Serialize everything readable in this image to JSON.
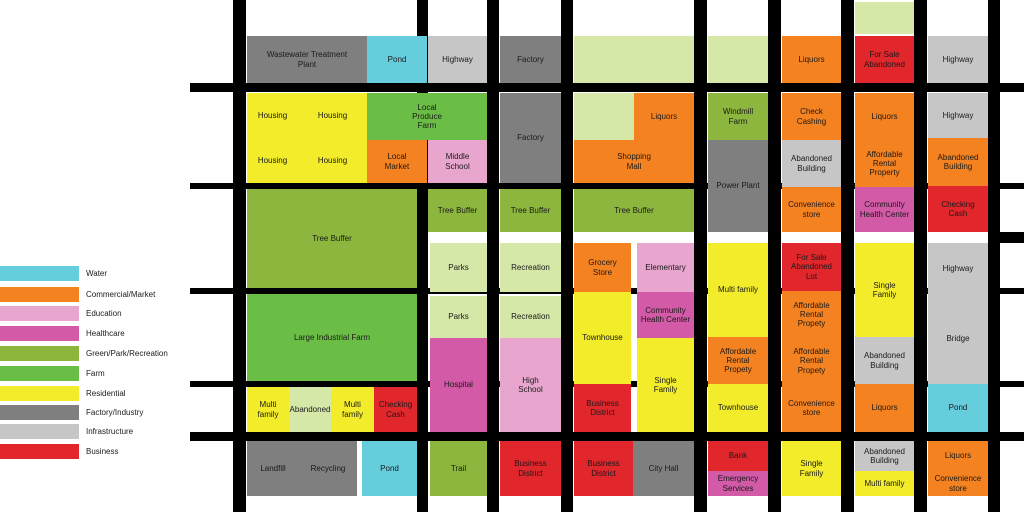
{
  "colors": {
    "water": "#66CDDD",
    "commercial": "#F58220",
    "education": "#E8A6CF",
    "healthcare": "#D25AA6",
    "green": "#8DB63E",
    "farm": "#6BBE45",
    "residential": "#F2EC2A",
    "factory": "#7F7F7F",
    "infrastructure": "#C6C6C6",
    "business": "#E1262C",
    "palegreen": "#D6E8A8",
    "roads": "#000000"
  },
  "legend": [
    {
      "key": "water",
      "label": "Water"
    },
    {
      "key": "commercial",
      "label": "Commercial/Market"
    },
    {
      "key": "education",
      "label": "Education"
    },
    {
      "key": "healthcare",
      "label": "Healthcare"
    },
    {
      "key": "green",
      "label": "Green/Park/Recreation"
    },
    {
      "key": "farm",
      "label": "Farm"
    },
    {
      "key": "residential",
      "label": "Residential"
    },
    {
      "key": "factory",
      "label": "Factory/Industry"
    },
    {
      "key": "infrastructure",
      "label": "Infrastructure"
    },
    {
      "key": "business",
      "label": "Business"
    }
  ],
  "blocks": [
    {
      "name": "wastewater-treatment-plant",
      "label": "Wastewater Treatment\nPlant",
      "type": "factory"
    },
    {
      "name": "pond-top",
      "label": "Pond",
      "type": "water"
    },
    {
      "name": "highway-top-left",
      "label": "Highway",
      "type": "infrastructure"
    },
    {
      "name": "factory-top",
      "label": "Factory",
      "type": "factory"
    },
    {
      "name": "top-open-space",
      "label": "",
      "type": "palegreen"
    },
    {
      "name": "top-open-space-2",
      "label": "",
      "type": "palegreen"
    },
    {
      "name": "liquors-top",
      "label": "Liquors",
      "type": "commercial"
    },
    {
      "name": "for-sale-abandoned-top",
      "label": "For Sale\nAbandoned",
      "type": "business"
    },
    {
      "name": "top-open-space-3",
      "label": "",
      "type": "palegreen"
    },
    {
      "name": "highway-top-right",
      "label": "Highway",
      "type": "infrastructure"
    },
    {
      "name": "housing-1",
      "label": "Housing",
      "type": "residential"
    },
    {
      "name": "housing-2",
      "label": "Housing",
      "type": "residential"
    },
    {
      "name": "housing-3",
      "label": "Housing",
      "type": "residential"
    },
    {
      "name": "housing-4",
      "label": "Housing",
      "type": "residential"
    },
    {
      "name": "local-produce-farm",
      "label": "Local\nProduce\nFarm",
      "type": "farm"
    },
    {
      "name": "local-market",
      "label": "Local\nMarket",
      "type": "commercial"
    },
    {
      "name": "middle-school",
      "label": "Middle\nSchool",
      "type": "education"
    },
    {
      "name": "factory-2",
      "label": "Factory",
      "type": "factory"
    },
    {
      "name": "open-space-mall-lot",
      "label": "",
      "type": "palegreen"
    },
    {
      "name": "liquors-mall",
      "label": "Liquors",
      "type": "commercial"
    },
    {
      "name": "shopping-mall",
      "label": "Shopping\nMall",
      "type": "commercial"
    },
    {
      "name": "windmill-farm",
      "label": "Windmill\nFarm",
      "type": "green"
    },
    {
      "name": "power-plant",
      "label": "Power Plant",
      "type": "factory"
    },
    {
      "name": "check-cashing",
      "label": "Check\nCashing",
      "type": "commercial"
    },
    {
      "name": "abandoned-building-1",
      "label": "Abandoned\nBuilding",
      "type": "infrastructure"
    },
    {
      "name": "convenience-store-1",
      "label": "Convenience\nstore",
      "type": "commercial"
    },
    {
      "name": "liquors-2",
      "label": "Liquors",
      "type": "commercial"
    },
    {
      "name": "affordable-rental-1",
      "label": "Affordable\nRental\nProperty",
      "type": "commercial"
    },
    {
      "name": "community-health-center-1",
      "label": "Community\nHealth Center",
      "type": "healthcare"
    },
    {
      "name": "highway-right-2",
      "label": "Highway",
      "type": "infrastructure"
    },
    {
      "name": "abandoned-building-2",
      "label": "Abandoned\nBuilding",
      "type": "commercial"
    },
    {
      "name": "checking-cash-1",
      "label": "Checking\nCash",
      "type": "business"
    },
    {
      "name": "tree-buffer-large",
      "label": "Tree Buffer",
      "type": "green"
    },
    {
      "name": "tree-buffer-1",
      "label": "Tree Buffer",
      "type": "green"
    },
    {
      "name": "tree-buffer-2",
      "label": "Tree Buffer",
      "type": "green"
    },
    {
      "name": "tree-buffer-3",
      "label": "Tree Buffer",
      "type": "green"
    },
    {
      "name": "large-industrial-farm",
      "label": "Large Industrial Farm",
      "type": "farm"
    },
    {
      "name": "parks-1",
      "label": "Parks",
      "type": "palegreen"
    },
    {
      "name": "recreation-1",
      "label": "Recreation",
      "type": "palegreen"
    },
    {
      "name": "grocery-store",
      "label": "Grocery\nStore",
      "type": "commercial"
    },
    {
      "name": "elementary",
      "label": "Elementary",
      "type": "education"
    },
    {
      "name": "multi-family-1",
      "label": "Multi family",
      "type": "residential"
    },
    {
      "name": "for-sale-abandoned-lot",
      "label": "For Sale\nAbandoned\nLot",
      "type": "business"
    },
    {
      "name": "single-family-1",
      "label": "Single\nFamily",
      "type": "residential"
    },
    {
      "name": "highway-right-3",
      "label": "Highway",
      "type": "infrastructure"
    },
    {
      "name": "parks-2",
      "label": "Parks",
      "type": "palegreen"
    },
    {
      "name": "recreation-2",
      "label": "Recreation",
      "type": "palegreen"
    },
    {
      "name": "townhouse-1",
      "label": "Townhouse",
      "type": "residential"
    },
    {
      "name": "community-health-center-2",
      "label": "Community\nHealth Center",
      "type": "healthcare"
    },
    {
      "name": "affordable-rental-2",
      "label": "Affordable\nRental\nPropety",
      "type": "commercial"
    },
    {
      "name": "bridge",
      "label": "Bridge",
      "type": "infrastructure"
    },
    {
      "name": "affordable-rental-3",
      "label": "Affordable\nRental\nPropety",
      "type": "commercial"
    },
    {
      "name": "affordable-rental-4",
      "label": "Affordable\nRental\nPropety",
      "type": "commercial"
    },
    {
      "name": "abandoned-building-3",
      "label": "Abandoned\nBuilding",
      "type": "infrastructure"
    },
    {
      "name": "multi-family-2",
      "label": "Multi family",
      "type": "residential"
    },
    {
      "name": "abandoned-small",
      "label": "Abandoned",
      "type": "palegreen"
    },
    {
      "name": "multi-family-3",
      "label": "Multi family",
      "type": "residential"
    },
    {
      "name": "checking-cash-2",
      "label": "Checking\nCash",
      "type": "business"
    },
    {
      "name": "hospital",
      "label": "Hospital",
      "type": "healthcare"
    },
    {
      "name": "high-school",
      "label": "High\nSchool",
      "type": "education"
    },
    {
      "name": "business-district-1",
      "label": "Business\nDistrict",
      "type": "business"
    },
    {
      "name": "single-family-2",
      "label": "Single\nFamily",
      "type": "residential"
    },
    {
      "name": "townhouse-2",
      "label": "Townhouse",
      "type": "residential"
    },
    {
      "name": "convenience-store-2",
      "label": "Convenience\nstore",
      "type": "commercial"
    },
    {
      "name": "liquors-3",
      "label": "Liquors",
      "type": "commercial"
    },
    {
      "name": "pond-right",
      "label": "Pond",
      "type": "water"
    },
    {
      "name": "landfill",
      "label": "Landfill",
      "type": "factory"
    },
    {
      "name": "recycling",
      "label": "Recycling",
      "type": "factory"
    },
    {
      "name": "pond-bottom",
      "label": "Pond",
      "type": "water"
    },
    {
      "name": "trail",
      "label": "Trail",
      "type": "green"
    },
    {
      "name": "business-district-2",
      "label": "Business\nDistrict",
      "type": "business"
    },
    {
      "name": "business-district-3",
      "label": "Business\nDistrict",
      "type": "business"
    },
    {
      "name": "city-hall",
      "label": "City Hall",
      "type": "factory"
    },
    {
      "name": "bank",
      "label": "Bank",
      "type": "business"
    },
    {
      "name": "emergency-services",
      "label": "Emergency\nServices",
      "type": "healthcare"
    },
    {
      "name": "single-family-3",
      "label": "Single\nFamily",
      "type": "residential"
    },
    {
      "name": "abandoned-building-4",
      "label": "Abandoned\nBuilding",
      "type": "infrastructure"
    },
    {
      "name": "multi-family-4",
      "label": "Multi family",
      "type": "residential"
    },
    {
      "name": "liquors-4",
      "label": "Liquors",
      "type": "commercial"
    },
    {
      "name": "convenience-store-3",
      "label": "Convenience\nstore",
      "type": "commercial"
    }
  ]
}
